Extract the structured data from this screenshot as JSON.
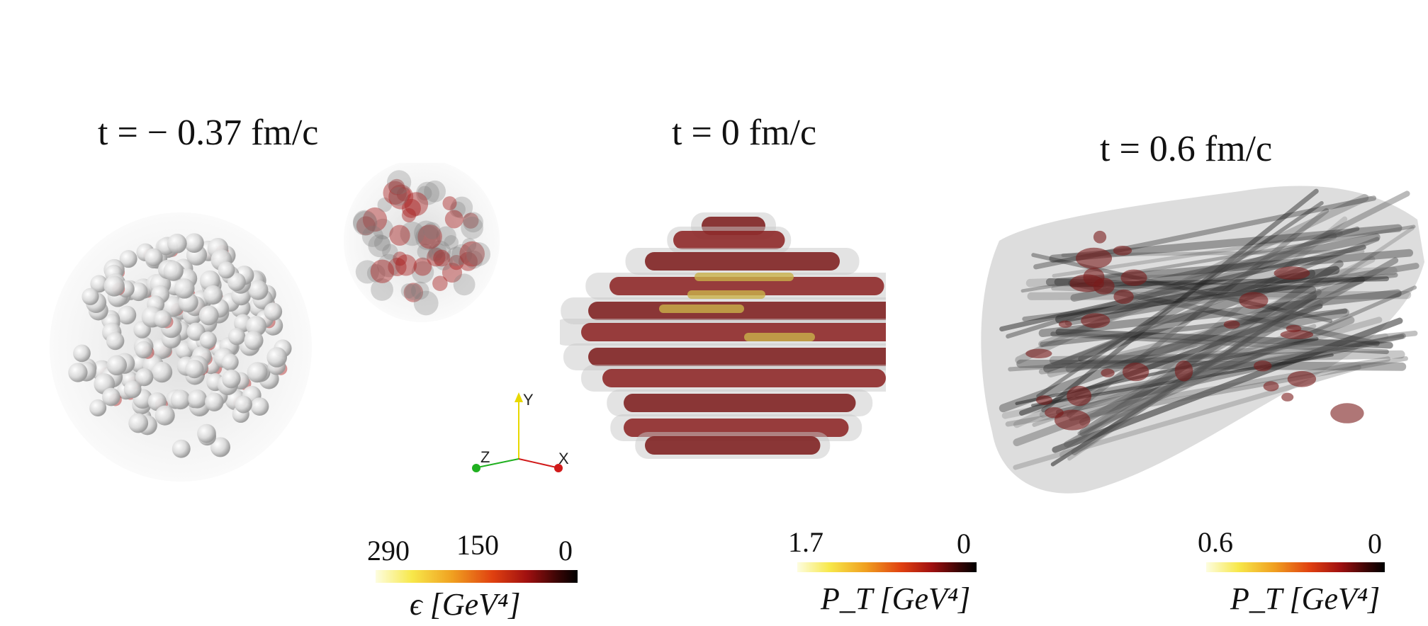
{
  "panels": [
    {
      "time_label": "t = − 0.37 fm/c"
    },
    {
      "time_label": "t = 0 fm/c"
    },
    {
      "time_label": "t = 0.6 fm/c"
    }
  ],
  "colorbars": [
    {
      "ticks": [
        "290",
        "150",
        "0"
      ],
      "title": "ϵ [GeV⁴]"
    },
    {
      "ticks": [
        "1.7",
        "0"
      ],
      "title": "P_T [GeV⁴]"
    },
    {
      "ticks": [
        "0.6",
        "0"
      ],
      "title": "P_T [GeV⁴]"
    }
  ],
  "axes": {
    "x": "X",
    "y": "Y",
    "z": "Z"
  },
  "colors": {
    "x_axis": "#d11a1a",
    "y_axis": "#e8d800",
    "z_axis": "#20b020",
    "nucleon": "#e8e8e8",
    "medium": "#7a1a1a",
    "stream": "#2a2a2a"
  }
}
